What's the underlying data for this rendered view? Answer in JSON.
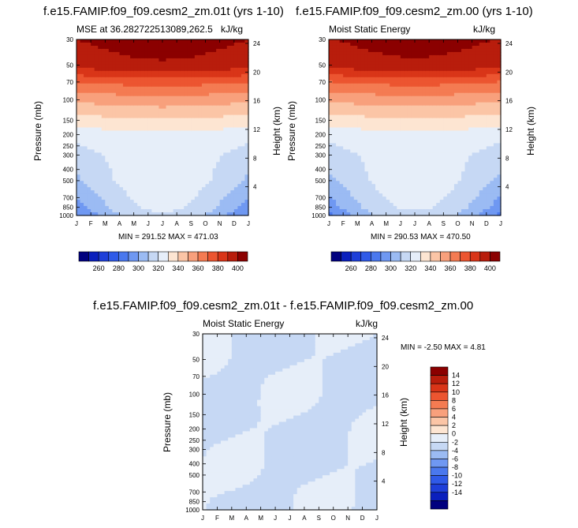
{
  "chart_data": [
    {
      "type": "contour",
      "title": "f.e15.FAMIP.f09_f09.cesm2_zm.01t (yrs 1-10)",
      "left_string": "MSE at 36.282722513089,262.5",
      "right_string": "kJ/kg",
      "xlabel": "",
      "ylabel": "Pressure (mb)",
      "y2label": "Height (km)",
      "x_ticks": [
        "J",
        "F",
        "M",
        "A",
        "M",
        "J",
        "J",
        "A",
        "S",
        "O",
        "N",
        "D",
        "J"
      ],
      "y_ticks": [
        "30",
        "50",
        "70",
        "100",
        "150",
        "200",
        "250",
        "300",
        "400",
        "500",
        "700",
        "850",
        "1000"
      ],
      "y2_ticks": [
        "24",
        "20",
        "16",
        "12",
        "8",
        "4"
      ],
      "stats": "MIN = 291.52 MAX = 471.03",
      "colorbar_orientation": "horizontal",
      "colorbar_labels": [
        "260",
        "280",
        "300",
        "320",
        "340",
        "360",
        "380",
        "400"
      ],
      "contour_levels": [
        250,
        260,
        270,
        280,
        290,
        300,
        310,
        320,
        330,
        340,
        350,
        360,
        370,
        380,
        390,
        400,
        410
      ],
      "pressure_profile": [
        {
          "p": 30,
          "value": 410
        },
        {
          "p": 50,
          "value": 405
        },
        {
          "p": 70,
          "value": 380
        },
        {
          "p": 100,
          "value": 362
        },
        {
          "p": 150,
          "value": 345
        },
        {
          "p": 200,
          "value": 334
        },
        {
          "p": 300,
          "value": 325
        },
        {
          "p": 500,
          "value": 318
        },
        {
          "p": 850,
          "value": 305
        },
        {
          "p": 1000,
          "value": 298
        }
      ]
    },
    {
      "type": "contour",
      "title": "f.e15.FAMIP.f09_f09.cesm2_zm.00 (yrs 1-10)",
      "left_string": "Moist Static Energy",
      "right_string": "kJ/kg",
      "xlabel": "",
      "ylabel": "Pressure (mb)",
      "y2label": "Height (km)",
      "x_ticks": [
        "J",
        "F",
        "M",
        "A",
        "M",
        "J",
        "J",
        "A",
        "S",
        "O",
        "N",
        "D",
        "J"
      ],
      "y_ticks": [
        "30",
        "50",
        "70",
        "100",
        "150",
        "200",
        "250",
        "300",
        "400",
        "500",
        "700",
        "850",
        "1000"
      ],
      "y2_ticks": [
        "24",
        "20",
        "16",
        "12",
        "8",
        "4"
      ],
      "stats": "MIN = 290.53 MAX = 470.50",
      "colorbar_orientation": "horizontal",
      "colorbar_labels": [
        "260",
        "280",
        "300",
        "320",
        "340",
        "360",
        "380",
        "400"
      ],
      "contour_levels": [
        250,
        260,
        270,
        280,
        290,
        300,
        310,
        320,
        330,
        340,
        350,
        360,
        370,
        380,
        390,
        400,
        410
      ]
    },
    {
      "type": "contour",
      "title": "f.e15.FAMIP.f09_f09.cesm2_zm.01t - f.e15.FAMIP.f09_f09.cesm2_zm.00",
      "left_string": "Moist Static Energy",
      "right_string": "kJ/kg",
      "xlabel": "",
      "ylabel": "Pressure (mb)",
      "y2label": "Height (km)",
      "x_ticks": [
        "J",
        "F",
        "M",
        "A",
        "M",
        "J",
        "J",
        "A",
        "S",
        "O",
        "N",
        "D",
        "J"
      ],
      "y_ticks": [
        "30",
        "50",
        "70",
        "100",
        "150",
        "200",
        "250",
        "300",
        "400",
        "500",
        "700",
        "850",
        "1000"
      ],
      "y2_ticks": [
        "24",
        "20",
        "16",
        "12",
        "8",
        "4"
      ],
      "stats": "MIN =  -2.50 MAX =   4.81",
      "colorbar_orientation": "vertical",
      "colorbar_labels": [
        "14",
        "12",
        "10",
        "8",
        "6",
        "4",
        "2",
        "0",
        "-2",
        "-4",
        "-6",
        "-8",
        "-10",
        "-12",
        "-14"
      ],
      "contour_levels": [
        -15,
        -14,
        -12,
        -10,
        -8,
        -6,
        -4,
        -2,
        0,
        2,
        4,
        6,
        8,
        10,
        12,
        14,
        15
      ]
    }
  ],
  "colors": {
    "diverging": [
      "#00007f",
      "#0a1fbd",
      "#1e3fd9",
      "#2f5ae8",
      "#4a78ee",
      "#6f98f2",
      "#9bbbf3",
      "#c6d8f4",
      "#e6eef9",
      "#fde5d2",
      "#fbc5a6",
      "#f8a07c",
      "#f47b52",
      "#ec5530",
      "#d93518",
      "#b81d0c",
      "#8b0000"
    ]
  }
}
